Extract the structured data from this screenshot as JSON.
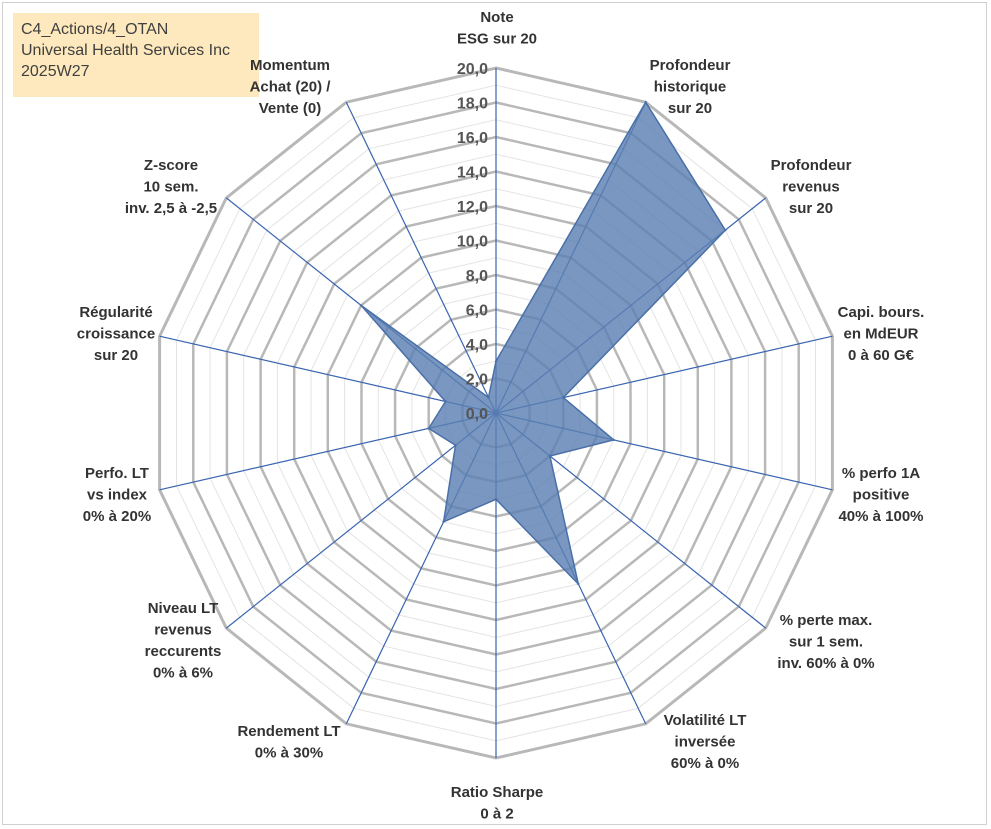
{
  "title_lines": [
    "C4_Actions/4_OTAN",
    "Universal Health Services Inc",
    "2025W27"
  ],
  "chart_data": {
    "type": "radar",
    "rlim": [
      0,
      20
    ],
    "grid": true,
    "r_ticks": [
      "0,0",
      "2,0",
      "4,0",
      "6,0",
      "8,0",
      "10,0",
      "12,0",
      "14,0",
      "16,0",
      "18,0",
      "20,0"
    ],
    "axes": [
      {
        "label": [
          "Note",
          "ESG sur 20"
        ],
        "value": 3
      },
      {
        "label": [
          "Profondeur",
          "historique",
          "sur 20"
        ],
        "value": 20
      },
      {
        "label": [
          "Profondeur",
          "revenus",
          "sur 20"
        ],
        "value": 17
      },
      {
        "label": [
          "Capi. bours.",
          "en MdEUR",
          "0 à 60 G€"
        ],
        "value": 4
      },
      {
        "label": [
          "% perfo 1A",
          "positive",
          "40% à 100%"
        ],
        "value": 7
      },
      {
        "label": [
          "% perte max.",
          "sur 1 sem.",
          "inv. 60% à 0%"
        ],
        "value": 4
      },
      {
        "label": [
          "Volatilité LT",
          "inversée",
          "60% à 0%"
        ],
        "value": 11
      },
      {
        "label": [
          "Ratio Sharpe",
          "0 à 2"
        ],
        "value": 5
      },
      {
        "label": [
          "Rendement LT",
          "0% à 30%"
        ],
        "value": 7
      },
      {
        "label": [
          "Niveau LT",
          "revenus",
          "reccurents",
          "0% à 6%"
        ],
        "value": 3
      },
      {
        "label": [
          "Perfo. LT",
          "vs index",
          "0% à 20%"
        ],
        "value": 4
      },
      {
        "label": [
          "Régularité",
          "croissance",
          "sur 20"
        ],
        "value": 3
      },
      {
        "label": [
          "Z-score",
          "10 sem.",
          "inv. 2,5 à -2,5"
        ],
        "value": 10
      },
      {
        "label": [
          "Momentum",
          "Achat (20) /",
          "Vente (0)"
        ],
        "value": 1
      }
    ],
    "series": [
      {
        "values": [
          3,
          20,
          17,
          4,
          7,
          4,
          11,
          5,
          7,
          3,
          4,
          3,
          10,
          1
        ]
      }
    ],
    "colors": {
      "fill": "#5b80b2",
      "fill_opacity": 0.82,
      "outline": "#4a70a8",
      "spoke": "#3a64b0",
      "ring_major": "#b8b8b8",
      "ring_minor": "#e4e4e4"
    }
  }
}
